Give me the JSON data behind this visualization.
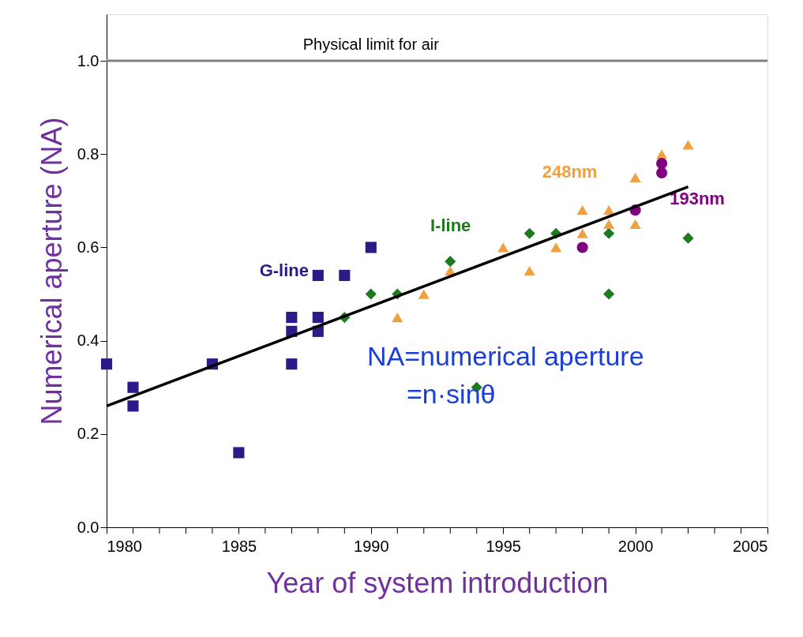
{
  "chart_data": {
    "type": "scatter",
    "xlabel": "Year of system introduction",
    "ylabel": "Numerical aperture (NA)",
    "xlim": [
      1980,
      2005
    ],
    "ylim": [
      0,
      1.1
    ],
    "xticks": [
      1980,
      {
        "value": 1981,
        "label": null
      },
      {
        "value": 1982,
        "label": null
      },
      {
        "value": 1983,
        "label": null
      },
      {
        "value": 1984,
        "label": null
      },
      1985,
      {
        "value": 1986,
        "label": null
      },
      {
        "value": 1987,
        "label": null
      },
      {
        "value": 1988,
        "label": null
      },
      {
        "value": 1989,
        "label": null
      },
      1990,
      {
        "value": 1991,
        "label": null
      },
      {
        "value": 1992,
        "label": null
      },
      {
        "value": 1993,
        "label": null
      },
      {
        "value": 1994,
        "label": null
      },
      1995,
      {
        "value": 1996,
        "label": null
      },
      {
        "value": 1997,
        "label": null
      },
      {
        "value": 1998,
        "label": null
      },
      {
        "value": 1999,
        "label": null
      },
      2000,
      {
        "value": 2001,
        "label": null
      },
      {
        "value": 2002,
        "label": null
      },
      {
        "value": 2003,
        "label": null
      },
      {
        "value": 2004,
        "label": null
      },
      2005
    ],
    "yticks": [
      {
        "value": 0,
        "label": "0.0"
      },
      0.2,
      0.4,
      0.6,
      0.8,
      {
        "value": 1,
        "label": "1.0"
      }
    ],
    "grid": false,
    "series": [
      {
        "name": "G-line",
        "color": "#2e1a87",
        "marker": "square",
        "x": [
          1980,
          1981,
          1981,
          1984,
          1985,
          1987,
          1987,
          1987,
          1988,
          1988,
          1988,
          1989,
          1990
        ],
        "values": [
          0.35,
          0.3,
          0.26,
          0.35,
          0.16,
          0.45,
          0.42,
          0.35,
          0.54,
          0.45,
          0.42,
          0.54,
          0.6
        ]
      },
      {
        "name": "I-line",
        "color": "#1e7a1e",
        "marker": "diamond",
        "x": [
          1989,
          1990,
          1991,
          1993,
          1994,
          1996,
          1997,
          1999,
          1999,
          2002
        ],
        "values": [
          0.45,
          0.5,
          0.5,
          0.57,
          0.3,
          0.63,
          0.63,
          0.63,
          0.5,
          0.62
        ]
      },
      {
        "name": "248nm",
        "color": "#f0a040",
        "marker": "triangle",
        "x": [
          1991,
          1992,
          1993,
          1995,
          1996,
          1997,
          1998,
          1998,
          1999,
          1999,
          2000,
          2000,
          2001,
          2002
        ],
        "values": [
          0.45,
          0.5,
          0.55,
          0.6,
          0.55,
          0.6,
          0.68,
          0.63,
          0.68,
          0.65,
          0.75,
          0.65,
          0.8,
          0.82
        ]
      },
      {
        "name": "193nm",
        "color": "#800080",
        "marker": "circle",
        "x": [
          1998,
          2000,
          2001,
          2001
        ],
        "values": [
          0.6,
          0.68,
          0.76,
          0.78
        ]
      },
      {
        "type": "line",
        "color": "#000000",
        "line_style": "solid",
        "x": [
          1980,
          2002
        ],
        "values": [
          0.26,
          0.73
        ]
      }
    ],
    "ref_lines": [
      {
        "axis": "y",
        "value": 1.0,
        "label": "Physical limit for air",
        "color": "#808080"
      }
    ],
    "annotations": [
      "NA=numerical aperture",
      "=n·sinθ"
    ]
  }
}
